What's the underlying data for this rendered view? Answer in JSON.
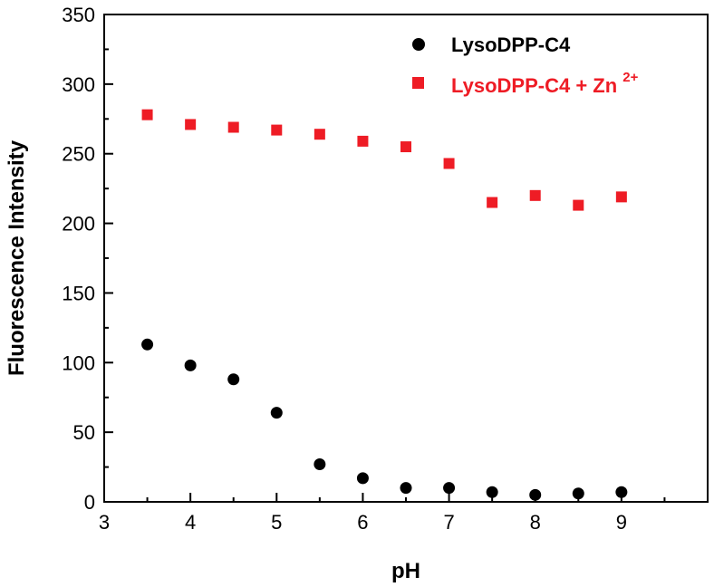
{
  "chart_data": {
    "type": "scatter",
    "xlabel": "pH",
    "ylabel": "Fluorescence Intensity",
    "xlim": [
      3,
      10
    ],
    "ylim": [
      0,
      350
    ],
    "xticks": [
      3,
      4,
      5,
      6,
      7,
      8,
      9
    ],
    "yticks": [
      0,
      50,
      100,
      150,
      200,
      250,
      300,
      350
    ],
    "grid": false,
    "legend_position": "top-right",
    "series": [
      {
        "name": "LysoDPP-C4",
        "marker": "circle",
        "color": "#000000",
        "x": [
          3.5,
          4.0,
          4.5,
          5.0,
          5.5,
          6.0,
          6.5,
          7.0,
          7.5,
          8.0,
          8.5,
          9.0
        ],
        "y": [
          113,
          98,
          88,
          64,
          27,
          17,
          10,
          10,
          7,
          5,
          6,
          7
        ]
      },
      {
        "name": "LysoDPP-C4 + Zn2+",
        "legend_base": "LysoDPP-C4 + Zn",
        "legend_sup": "2+",
        "marker": "square",
        "color": "#ee1c25",
        "x": [
          3.5,
          4.0,
          4.5,
          5.0,
          5.5,
          6.0,
          6.5,
          7.0,
          7.5,
          8.0,
          8.5,
          9.0
        ],
        "y": [
          278,
          271,
          269,
          267,
          264,
          259,
          255,
          243,
          215,
          220,
          213,
          219
        ]
      }
    ]
  }
}
